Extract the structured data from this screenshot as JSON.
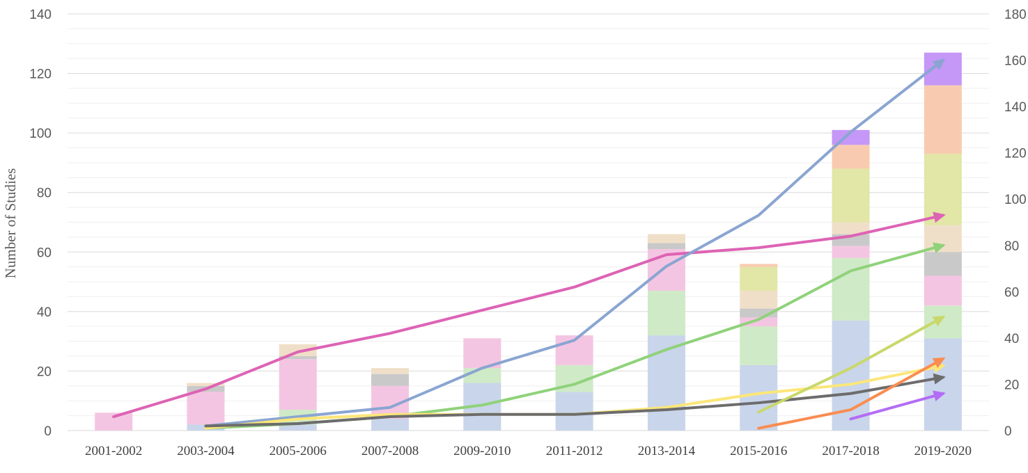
{
  "chart_data": {
    "type": "bar",
    "ylabel": "Number of Studies",
    "categories": [
      "2001-2002",
      "2003-2004",
      "2005-2006",
      "2007-2008",
      "2009-2010",
      "2011-2012",
      "2013-2014",
      "2015-2016",
      "2017-2018",
      "2019-2020"
    ],
    "ylim": [
      0,
      140
    ],
    "y2lim": [
      0,
      180
    ],
    "yticks": [
      0,
      20,
      40,
      60,
      80,
      100,
      120,
      140
    ],
    "y2ticks": [
      0,
      20,
      40,
      60,
      80,
      100,
      120,
      140,
      160,
      180
    ],
    "grid": true,
    "stacked_bars": [
      {
        "color": "#c9d5ea",
        "values": [
          0,
          2,
          2,
          4,
          16,
          13,
          32,
          22,
          37,
          31
        ]
      },
      {
        "color": "#cfeac6",
        "values": [
          0,
          0,
          5,
          0,
          5,
          9,
          15,
          13,
          21,
          11
        ]
      },
      {
        "color": "#f4c5e2",
        "values": [
          6,
          11,
          17,
          11,
          10,
          10,
          14,
          3,
          4,
          10
        ]
      },
      {
        "color": "#c9c9c9",
        "values": [
          0,
          2,
          1,
          4,
          0,
          0,
          2,
          3,
          4,
          8
        ]
      },
      {
        "color": "#f0dfc8",
        "values": [
          0,
          1,
          4,
          2,
          0,
          0,
          3,
          6,
          4,
          9
        ]
      },
      {
        "color": "#e2e6a6",
        "values": [
          0,
          0,
          0,
          0,
          0,
          0,
          0,
          8,
          18,
          24
        ]
      },
      {
        "color": "#f8cbb0",
        "values": [
          0,
          0,
          0,
          0,
          0,
          0,
          0,
          1,
          8,
          23
        ]
      },
      {
        "color": "#c597f7",
        "values": [
          0,
          0,
          0,
          0,
          0,
          0,
          0,
          0,
          5,
          11
        ]
      }
    ],
    "trend_lines": [
      {
        "color": "#dd63b4",
        "values": [
          6,
          18,
          34,
          42,
          52,
          62,
          76,
          79,
          84,
          93
        ]
      },
      {
        "color": "#8aa5d1",
        "values": [
          null,
          2,
          6,
          10,
          27,
          39,
          71,
          93,
          129,
          160
        ]
      },
      {
        "color": "#8fd27a",
        "values": [
          null,
          1,
          3,
          6,
          11,
          20,
          35,
          48,
          69,
          80
        ]
      },
      {
        "color": "#fce678",
        "values": [
          null,
          1,
          5,
          7,
          7,
          7,
          10,
          16,
          20,
          28
        ]
      },
      {
        "color": "#6c6c6c",
        "values": [
          null,
          2,
          3,
          6,
          7,
          7,
          9,
          12,
          16,
          23
        ]
      },
      {
        "color": "#c9d86b",
        "values": [
          null,
          null,
          null,
          null,
          null,
          null,
          null,
          8,
          27,
          49
        ]
      },
      {
        "color": "#fa8c50",
        "values": [
          null,
          null,
          null,
          null,
          null,
          null,
          null,
          1,
          9,
          31
        ]
      },
      {
        "color": "#b36cf5",
        "values": [
          null,
          null,
          null,
          null,
          null,
          null,
          null,
          null,
          5,
          16
        ]
      }
    ]
  }
}
